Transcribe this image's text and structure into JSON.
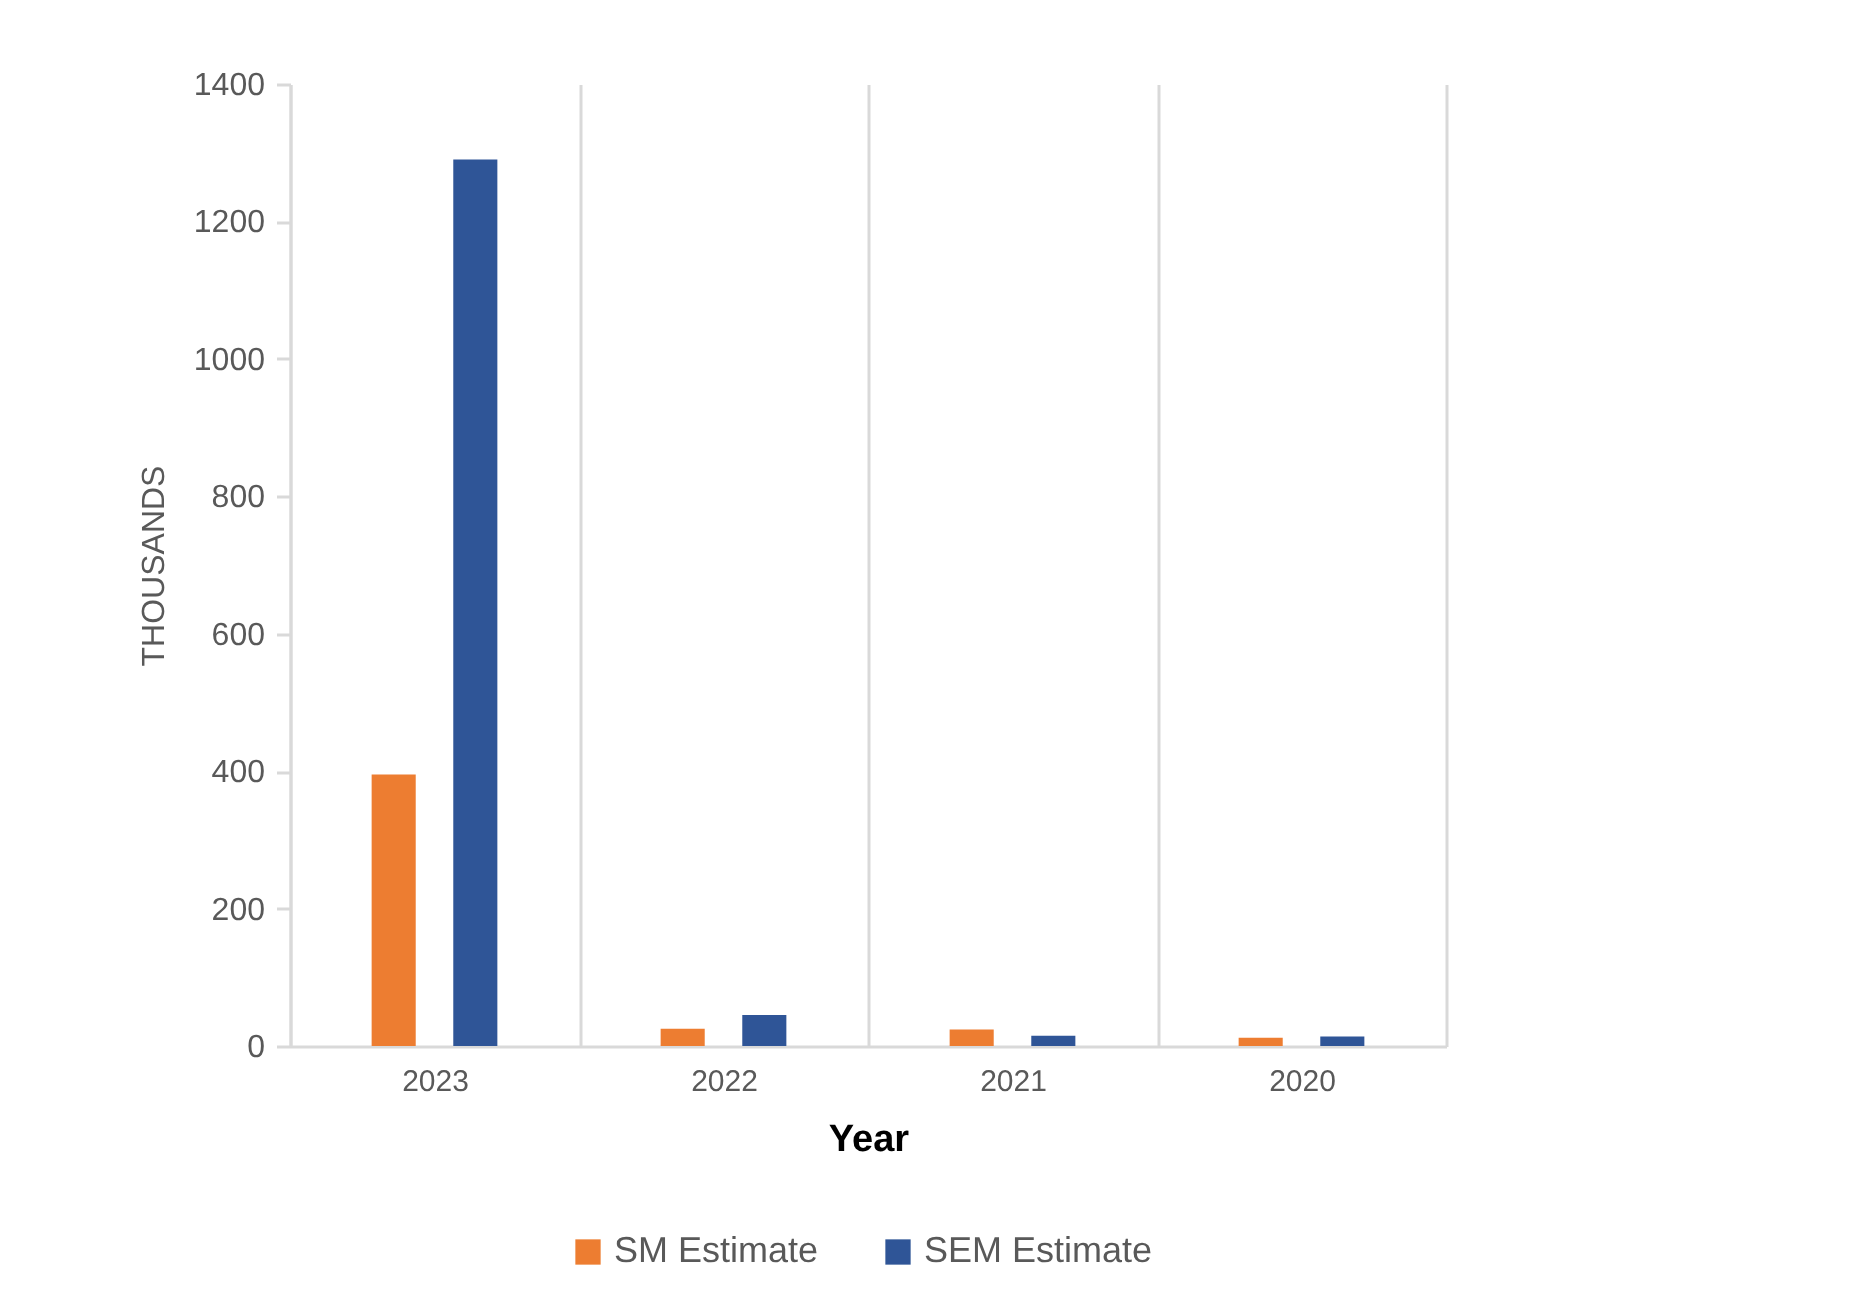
{
  "chart_data": {
    "type": "bar",
    "xlabel": "Year",
    "ylabel": "THOUSANDS",
    "categories": [
      "2023",
      "2022",
      "2021",
      "2020"
    ],
    "series": [
      {
        "name": "SM Estimate",
        "color": "#ed7d31",
        "values": [
          395,
          25,
          24,
          12
        ]
      },
      {
        "name": "SEM Estimate",
        "color": "#2f5597",
        "values": [
          1290,
          45,
          15,
          14
        ]
      }
    ],
    "ylim": [
      0,
      1400
    ],
    "yticks": [
      0,
      200,
      400,
      600,
      800,
      1000,
      1200,
      1400
    ],
    "grid": "x",
    "legend": "bottom"
  }
}
